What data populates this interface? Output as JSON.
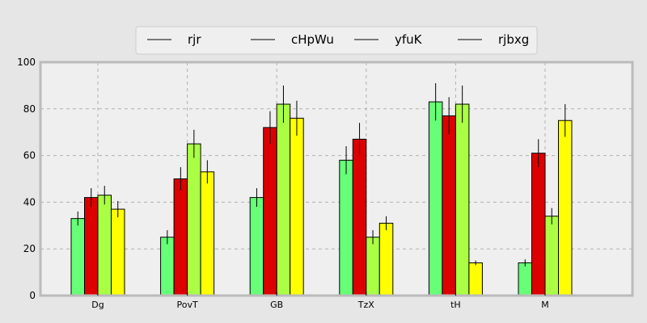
{
  "chart_data": {
    "type": "bar",
    "title": "",
    "xlabel": "",
    "ylabel": "",
    "categories": [
      "Dg",
      "PovT",
      "GB",
      "TzX",
      "tH",
      "M"
    ],
    "ylim": [
      0,
      100
    ],
    "yticks": [
      0,
      20,
      40,
      60,
      80,
      100
    ],
    "grid": true,
    "legend_position": "top-center",
    "series": [
      {
        "name": "rjr",
        "color": "#66ff77",
        "values": [
          33,
          25,
          42,
          58,
          83,
          14
        ],
        "errors": [
          3,
          3,
          4,
          6,
          8,
          1.5
        ]
      },
      {
        "name": "cHpWu",
        "color": "#dd0000",
        "values": [
          42,
          50,
          72,
          67,
          77,
          61
        ],
        "errors": [
          4,
          5,
          7,
          7,
          8,
          6
        ]
      },
      {
        "name": "yfuK",
        "color": "#aaff44",
        "values": [
          43,
          65,
          82,
          25,
          82,
          34
        ],
        "errors": [
          4,
          6,
          8,
          3,
          8,
          3.5
        ]
      },
      {
        "name": "rjbxg",
        "color": "#ffff00",
        "values": [
          37,
          53,
          76,
          31,
          14,
          75
        ],
        "errors": [
          3.5,
          5,
          7.5,
          3,
          1,
          7
        ]
      }
    ]
  }
}
